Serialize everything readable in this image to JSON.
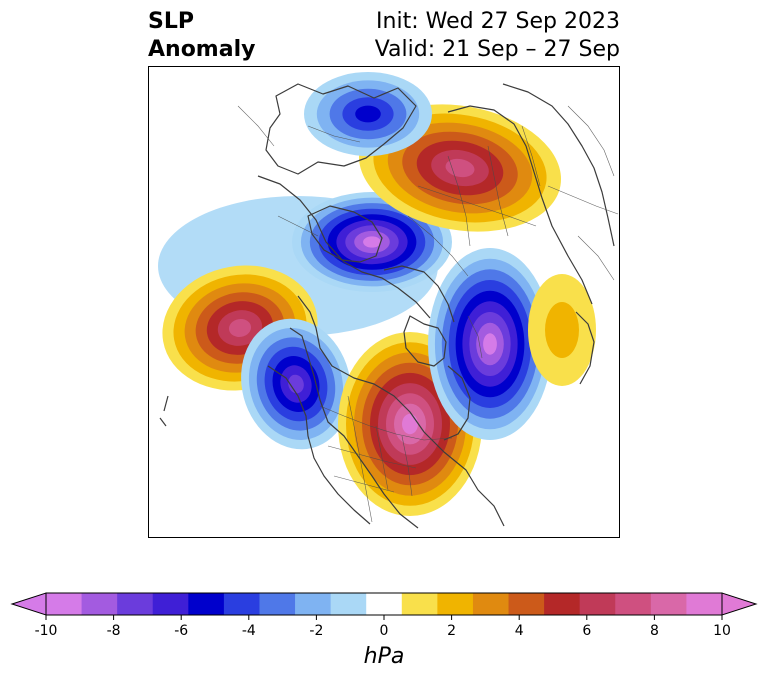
{
  "header": {
    "title_line1": "SLP",
    "title_line2": "Anomaly",
    "init": "Init: Wed 27 Sep 2023",
    "valid": "Valid: 21 Sep – 27 Sep"
  },
  "colorbar": {
    "ticks": [
      "-10",
      "-8",
      "-6",
      "-4",
      "-2",
      "0",
      "2",
      "4",
      "6",
      "8",
      "10"
    ],
    "unit": "hPa",
    "colors": [
      "#d57be8",
      "#a35be0",
      "#6b3cdc",
      "#3f1fd6",
      "#0000cc",
      "#2a3ee0",
      "#4f78e8",
      "#7fb3f2",
      "#aad8f6",
      "#ffffff",
      "#f9e04b",
      "#f0b400",
      "#e08a10",
      "#cc5a1a",
      "#b42828",
      "#c03a58",
      "#cf5080",
      "#d968a8",
      "#e07ad6"
    ],
    "extend_low_color": "#d57be8",
    "extend_high_color": "#e07ad6"
  },
  "anomalies": [
    {
      "name": "high-pacific",
      "sign": "positive",
      "peak_level": 7
    },
    {
      "name": "low-gulf-of-alaska",
      "sign": "negative",
      "peak_level": 7
    },
    {
      "name": "high-eastern-north-america",
      "sign": "positive",
      "peak_level": 9
    },
    {
      "name": "low-north-atlantic",
      "sign": "negative",
      "peak_level": 9
    },
    {
      "name": "low-arctic-siberia",
      "sign": "negative",
      "peak_level": 9
    },
    {
      "name": "high-eastern-siberia",
      "sign": "positive",
      "peak_level": 7
    },
    {
      "name": "low-polar",
      "sign": "negative",
      "peak_level": 5
    },
    {
      "name": "high-europe",
      "sign": "positive",
      "peak_level": 2
    }
  ]
}
